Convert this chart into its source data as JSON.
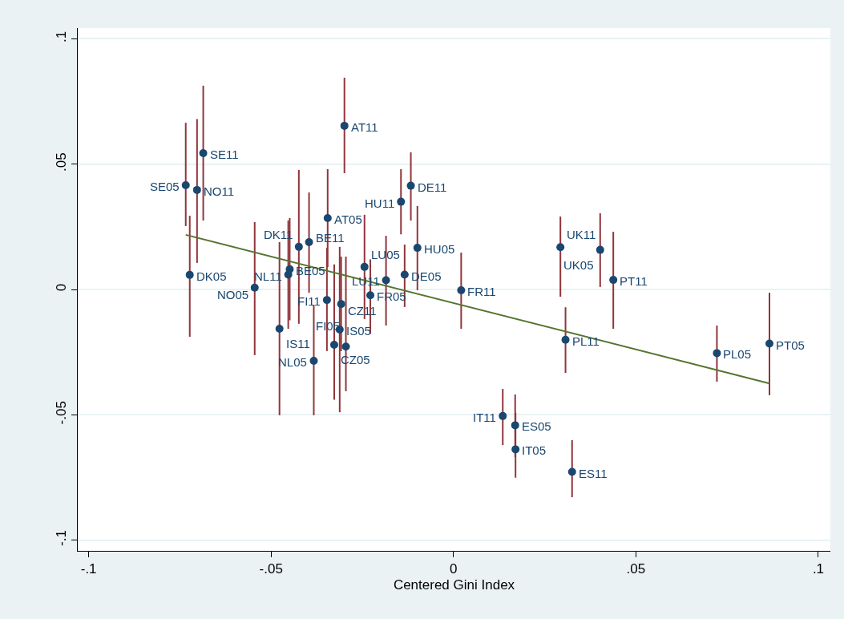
{
  "chart_data": {
    "type": "scatter",
    "xlabel": "Centered Gini Index",
    "xlim": [
      -0.103,
      0.1033
    ],
    "ylim": [
      -0.1043,
      0.1043
    ],
    "xticks": [
      {
        "value": -0.1,
        "label": "-.1"
      },
      {
        "value": -0.05,
        "label": "-.05"
      },
      0,
      {
        "value": 0.05,
        "label": ".05"
      },
      {
        "value": 0.1,
        "label": ".1"
      }
    ],
    "yticks": [
      {
        "value": -0.1,
        "label": "-.1"
      },
      {
        "value": -0.05,
        "label": "-.05"
      },
      0,
      {
        "value": 0.05,
        "label": ".05"
      },
      {
        "value": 0.1,
        "label": ".1"
      }
    ],
    "grid": "y",
    "series": [
      {
        "color": "#1a476f",
        "marker": "circle",
        "x": [
          -0.0734,
          -0.0703,
          -0.0686,
          -0.0723,
          -0.0299,
          -0.0345,
          -0.0347,
          -0.0396,
          -0.0424,
          -0.0449,
          -0.0453,
          -0.0545,
          -0.0477,
          -0.0383,
          -0.0312,
          -0.0327,
          -0.0295,
          -0.0308,
          -0.0244,
          -0.0228,
          -0.0185,
          -0.0134,
          -0.0099,
          -0.0144,
          -0.0117,
          0.0021,
          0.0293,
          0.0402,
          0.0438,
          0.0307,
          0.0722,
          0.0866,
          0.0135,
          0.0169,
          0.017,
          0.0325
        ],
        "values": [
          0.0416,
          0.0397,
          0.0544,
          0.0058,
          0.0653,
          0.0285,
          -0.0042,
          0.0189,
          0.017,
          0.0081,
          0.0059,
          0.0007,
          -0.0157,
          -0.0285,
          -0.016,
          -0.0221,
          -0.0228,
          -0.0058,
          0.009,
          -0.0023,
          0.0037,
          0.0059,
          0.0166,
          0.035,
          0.0414,
          -0.0003,
          0.0169,
          0.0158,
          0.0038,
          -0.0201,
          -0.0254,
          -0.0216,
          -0.0505,
          -0.0542,
          -0.0638,
          -0.0728
        ],
        "errors": [
          [
            0.0253,
            0.0665
          ],
          [
            0.0106,
            0.068
          ],
          [
            0.0275,
            0.0813
          ],
          [
            -0.0189,
            0.0294
          ],
          [
            0.0464,
            0.0845
          ],
          [
            0.009,
            0.048
          ],
          [
            -0.0246,
            0.0166
          ],
          [
            -0.0013,
            0.0387
          ],
          [
            -0.0137,
            0.0477
          ],
          [
            -0.0123,
            0.0285
          ],
          [
            -0.0157,
            0.0275
          ],
          [
            -0.0262,
            0.0269
          ],
          [
            -0.0502,
            0.0189
          ],
          [
            -0.0502,
            -0.0064
          ],
          [
            -0.049,
            0.017
          ],
          [
            -0.044,
            0.01
          ],
          [
            -0.0406,
            0.0131
          ],
          [
            -0.0246,
            0.0131
          ],
          [
            -0.0118,
            0.0298
          ],
          [
            -0.0177,
            0.012
          ],
          [
            -0.0144,
            0.0214
          ],
          [
            -0.007,
            0.0179
          ],
          [
            -0.0003,
            0.0333
          ],
          [
            0.022,
            0.048
          ],
          [
            0.0275,
            0.0547
          ],
          [
            -0.0157,
            0.0147
          ],
          [
            -0.0029,
            0.0291
          ],
          [
            0.001,
            0.0304
          ],
          [
            -0.0157,
            0.023
          ],
          [
            -0.0333,
            -0.0071
          ],
          [
            -0.0368,
            -0.0144
          ],
          [
            -0.0422,
            -0.0013
          ],
          [
            -0.0621,
            -0.0397
          ],
          [
            -0.0669,
            -0.0419
          ],
          [
            -0.0751,
            -0.0492
          ],
          [
            -0.0829,
            -0.0601
          ]
        ]
      },
      {
        "type": "line",
        "color": "#55752f",
        "x": [
          -0.0734,
          0.0866
        ],
        "values": [
          0.0218,
          -0.0375
        ]
      }
    ],
    "annotations": [
      {
        "text": "SE05",
        "x": -0.0734,
        "y": 0.0416
      },
      {
        "text": "NO11",
        "x": -0.0703,
        "y": 0.0397
      },
      {
        "text": "SE11",
        "x": -0.0686,
        "y": 0.0544
      },
      {
        "text": "DK05",
        "x": -0.0723,
        "y": 0.0058
      },
      {
        "text": "AT11",
        "x": -0.0299,
        "y": 0.0653
      },
      {
        "text": "AT05",
        "x": -0.0345,
        "y": 0.0285
      },
      {
        "text": "FI11",
        "x": -0.0347,
        "y": -0.0042
      },
      {
        "text": "BE11",
        "x": -0.0396,
        "y": 0.0189
      },
      {
        "text": "DK11",
        "x": -0.0424,
        "y": 0.017
      },
      {
        "text": "BE05",
        "x": -0.0449,
        "y": 0.0081
      },
      {
        "text": "NL11",
        "x": -0.0453,
        "y": 0.0059
      },
      {
        "text": "NO05",
        "x": -0.0545,
        "y": 0.0007
      },
      {
        "text": "IS11",
        "x": -0.0477,
        "y": -0.0157
      },
      {
        "text": "NL05",
        "x": -0.0383,
        "y": -0.0285
      },
      {
        "text": "IS05",
        "x": -0.0312,
        "y": -0.016
      },
      {
        "text": "CZ05",
        "x": -0.0327,
        "y": -0.0221
      },
      {
        "text": "FI05",
        "x": -0.0295,
        "y": -0.0228
      },
      {
        "text": "CZ11",
        "x": -0.0308,
        "y": -0.0058
      },
      {
        "text": "LU05",
        "x": -0.0244,
        "y": 0.009
      },
      {
        "text": "FR05",
        "x": -0.0228,
        "y": -0.0023
      },
      {
        "text": "LU11",
        "x": -0.0185,
        "y": 0.0037
      },
      {
        "text": "DE05",
        "x": -0.0134,
        "y": 0.0059
      },
      {
        "text": "HU05",
        "x": -0.0099,
        "y": 0.0166
      },
      {
        "text": "HU11",
        "x": -0.0144,
        "y": 0.035
      },
      {
        "text": "DE11",
        "x": -0.0117,
        "y": 0.0414
      },
      {
        "text": "FR11",
        "x": 0.0021,
        "y": -0.0003
      },
      {
        "text": "UK11",
        "x": 0.0293,
        "y": 0.0169
      },
      {
        "text": "UK05",
        "x": 0.0402,
        "y": 0.0158
      },
      {
        "text": "PT11",
        "x": 0.0438,
        "y": 0.0038
      },
      {
        "text": "PL11",
        "x": 0.0307,
        "y": -0.0201
      },
      {
        "text": "PL05",
        "x": 0.0722,
        "y": -0.0254
      },
      {
        "text": "PT05",
        "x": 0.0866,
        "y": -0.0216
      },
      {
        "text": "IT11",
        "x": 0.0135,
        "y": -0.0505
      },
      {
        "text": "ES05",
        "x": 0.0169,
        "y": -0.0542
      },
      {
        "text": "IT05",
        "x": 0.017,
        "y": -0.0638
      },
      {
        "text": "ES11",
        "x": 0.0325,
        "y": -0.0728
      }
    ]
  }
}
